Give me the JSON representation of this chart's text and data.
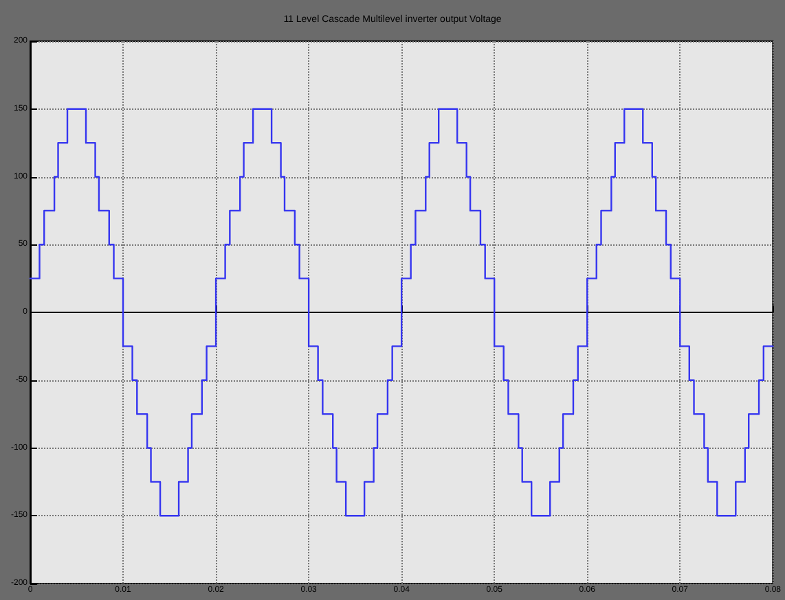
{
  "chart_data": {
    "type": "step",
    "title": "11 Level Cascade Multilevel inverter output Voltage",
    "xlim": [
      0,
      0.08
    ],
    "xticks": [
      0,
      0.01,
      0.02,
      0.03,
      0.04,
      0.05,
      0.06,
      0.07,
      0.08
    ],
    "ylim": [
      -200,
      200
    ],
    "yticks": [
      -200,
      -150,
      -100,
      -50,
      0,
      50,
      100,
      150,
      200
    ],
    "grid": true,
    "marker": "none",
    "line_style": "solid",
    "series": [
      {
        "color": "#3535f0",
        "x": [
          0,
          0.001,
          0.0015,
          0.0026,
          0.003,
          0.004,
          0.006,
          0.007,
          0.0074,
          0.0085,
          0.009,
          0.01,
          0.011,
          0.0115,
          0.0126,
          0.013,
          0.014,
          0.016,
          0.017,
          0.0174,
          0.0185,
          0.019,
          0.02,
          0.021,
          0.0215,
          0.0226,
          0.023,
          0.024,
          0.026,
          0.027,
          0.0274,
          0.0285,
          0.029,
          0.03,
          0.031,
          0.0315,
          0.0326,
          0.033,
          0.034,
          0.036,
          0.037,
          0.0374,
          0.0385,
          0.039,
          0.04,
          0.041,
          0.0415,
          0.0426,
          0.043,
          0.044,
          0.046,
          0.047,
          0.0474,
          0.0485,
          0.049,
          0.05,
          0.051,
          0.0515,
          0.0526,
          0.053,
          0.054,
          0.056,
          0.057,
          0.0574,
          0.0585,
          0.059,
          0.06,
          0.061,
          0.0615,
          0.0626,
          0.063,
          0.064,
          0.066,
          0.067,
          0.0674,
          0.0685,
          0.069,
          0.07,
          0.071,
          0.0715,
          0.0726,
          0.073,
          0.074,
          0.076,
          0.077,
          0.0774,
          0.0785,
          0.079,
          0.08
        ],
        "values": [
          25,
          50,
          75,
          100,
          125,
          150,
          125,
          100,
          75,
          50,
          25,
          -25,
          -50,
          -75,
          -100,
          -125,
          -150,
          -125,
          -100,
          -75,
          -50,
          -25,
          25,
          50,
          75,
          100,
          125,
          150,
          125,
          100,
          75,
          50,
          25,
          -25,
          -50,
          -75,
          -100,
          -125,
          -150,
          -125,
          -100,
          -75,
          -50,
          -25,
          25,
          50,
          75,
          100,
          125,
          150,
          125,
          100,
          75,
          50,
          25,
          -25,
          -50,
          -75,
          -100,
          -125,
          -150,
          -125,
          -100,
          -75,
          -50,
          -25,
          25,
          50,
          75,
          100,
          125,
          150,
          125,
          100,
          75,
          50,
          25,
          -25,
          -50,
          -75,
          -100,
          -125,
          -150,
          -125,
          -100,
          -75,
          -50,
          -25,
          -25
        ]
      }
    ]
  }
}
